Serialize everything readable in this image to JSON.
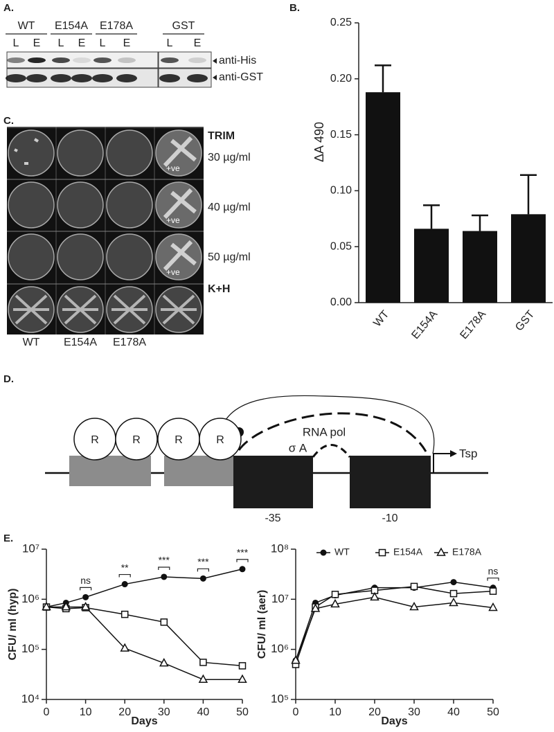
{
  "panel_labels": [
    "A.",
    "B.",
    "C.",
    "D.",
    "E."
  ],
  "blot": {
    "groups": [
      {
        "name": "WT",
        "lanes": [
          "L",
          "E"
        ]
      },
      {
        "name": "E154A",
        "lanes": [
          "L",
          "E"
        ]
      },
      {
        "name": "E178A",
        "lanes": [
          "L",
          "E"
        ]
      },
      {
        "name": "GST",
        "lanes": [
          "L",
          "E"
        ]
      }
    ],
    "antibodies": [
      "anti-His",
      "anti-GST"
    ]
  },
  "plates": {
    "row_labels": [
      "TRIM",
      "30 µg/ml",
      "40 µg/ml",
      "50 µg/ml",
      "K+H"
    ],
    "column_labels": [
      "WT",
      "E154A",
      "E178A"
    ],
    "control_labels": [
      "+ve",
      "+ve",
      "+ve"
    ]
  },
  "diagram": {
    "repressors": [
      "R",
      "R",
      "R",
      "R"
    ],
    "polymerase": "RNA pol",
    "sigma": "σ A",
    "boxes": [
      "-35",
      "-10"
    ],
    "tsp": "Tsp"
  },
  "chart_data": [
    {
      "type": "bar",
      "y_label": "ΔA 490",
      "categories": [
        "WT",
        "E154A",
        "E178A",
        "GST"
      ],
      "values": [
        0.188,
        0.066,
        0.064,
        0.079
      ],
      "errors": [
        0.024,
        0.021,
        0.014,
        0.035
      ],
      "color": "#111111",
      "ylim": [
        0,
        0.25
      ],
      "yticks": [
        {
          "value": 0,
          "label": "0.00"
        },
        0.05,
        {
          "value": 0.1,
          "label": "0.10"
        },
        0.15,
        {
          "value": 0.2,
          "label": "0.20"
        },
        0.25
      ]
    },
    {
      "type": "line",
      "log_y": true,
      "x_label": "Days",
      "y_label": "CFU/ ml (hyp)",
      "x": [
        0,
        5,
        10,
        20,
        30,
        40,
        50
      ],
      "xlim": [
        0,
        50
      ],
      "xticks": [
        0,
        10,
        20,
        30,
        40,
        50
      ],
      "ylim": [
        10000,
        10000000
      ],
      "yticks": [
        {
          "value": 10000,
          "label": "10⁴"
        },
        {
          "value": 100000,
          "label": "10⁵"
        },
        {
          "value": 1000000,
          "label": "10⁶"
        },
        {
          "value": 10000000,
          "label": "10⁷"
        }
      ],
      "series": [
        {
          "marker": "circle",
          "color": "#111111",
          "values": [
            700000,
            850000,
            1100000,
            2000000,
            2800000,
            2600000,
            4000000
          ]
        },
        {
          "marker": "square",
          "color": "#111111",
          "values": [
            700000,
            650000,
            680000,
            500000,
            350000,
            55000,
            47000
          ]
        },
        {
          "marker": "triangle",
          "color": "#111111",
          "values": [
            700000,
            700000,
            700000,
            105000,
            53000,
            25000,
            25000
          ]
        }
      ],
      "annotations": [
        {
          "x": 10,
          "label": "ns"
        },
        {
          "x": 20,
          "label": "**"
        },
        {
          "x": 30,
          "label": "***"
        },
        {
          "x": 40,
          "label": "***"
        },
        {
          "x": 50,
          "label": "***"
        }
      ]
    },
    {
      "type": "line",
      "log_y": true,
      "x_label": "Days",
      "y_label": "CFU/ ml (aer)",
      "x": [
        0,
        5,
        10,
        20,
        30,
        40,
        50
      ],
      "xlim": [
        0,
        50
      ],
      "xticks": [
        0,
        10,
        20,
        30,
        40,
        50
      ],
      "ylim": [
        100000,
        100000000
      ],
      "yticks": [
        {
          "value": 100000,
          "label": "10⁵"
        },
        {
          "value": 1000000,
          "label": "10⁶"
        },
        {
          "value": 10000000,
          "label": "10⁷"
        },
        {
          "value": 100000000,
          "label": "10⁸"
        }
      ],
      "legend": "top-right",
      "series": [
        {
          "name": "WT",
          "marker": "circle",
          "color": "#111111",
          "values": [
            600000,
            8500000,
            12000000,
            17000000,
            17000000,
            22000000,
            17000000
          ]
        },
        {
          "name": "E154A",
          "marker": "square",
          "color": "#111111",
          "values": [
            500000,
            7000000,
            12500000,
            15000000,
            18000000,
            13000000,
            14500000
          ]
        },
        {
          "name": "E178A",
          "marker": "triangle",
          "color": "#111111",
          "values": [
            600000,
            6500000,
            8000000,
            11000000,
            7000000,
            8500000,
            6800000
          ]
        }
      ],
      "annotations": [
        {
          "x": 50,
          "label": "ns"
        }
      ]
    }
  ]
}
